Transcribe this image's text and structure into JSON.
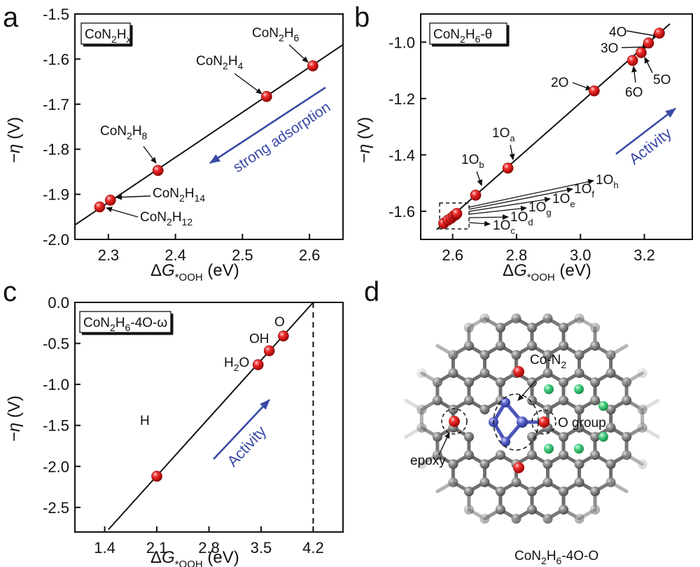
{
  "panels": {
    "a": {
      "letter": "a"
    },
    "b": {
      "letter": "b"
    },
    "c": {
      "letter": "c"
    },
    "d": {
      "letter": "d",
      "caption": "CoN2H6-4O-O",
      "labels": {
        "con2": "Co-N2",
        "ogroup": "O group",
        "epoxy": "epoxy"
      }
    }
  },
  "chart_data": [
    {
      "type": "scatter",
      "panel": "a",
      "title_box": "CoN2Hx",
      "xlabel": "ΔG*OOH (eV)",
      "ylabel": "−η (V)",
      "xlim": [
        2.25,
        2.65
      ],
      "ylim": [
        -2.0,
        -1.5
      ],
      "xticks": [
        2.3,
        2.4,
        2.5,
        2.6
      ],
      "yticks": [
        -2.0,
        -1.9,
        -1.8,
        -1.7,
        -1.6,
        -1.5
      ],
      "points": [
        {
          "label": "CoN2H12",
          "x": 2.287,
          "y": -1.928
        },
        {
          "label": "CoN2H14",
          "x": 2.303,
          "y": -1.913
        },
        {
          "label": "CoN2H8",
          "x": 2.374,
          "y": -1.847
        },
        {
          "label": "CoN2H4",
          "x": 2.536,
          "y": -1.683
        },
        {
          "label": "CoN2H6",
          "x": 2.605,
          "y": -1.615
        }
      ],
      "fit_line": {
        "x": [
          2.25,
          2.65
        ],
        "y": [
          -1.968,
          -1.568
        ]
      },
      "annotation": "strong adsorption"
    },
    {
      "type": "scatter",
      "panel": "b",
      "title_box": "CoN2H6-θ",
      "xlabel": "ΔG*OOH (eV)",
      "ylabel": "−η (V)",
      "xlim": [
        2.5,
        3.35
      ],
      "ylim": [
        -1.7,
        -0.9
      ],
      "xticks": [
        2.6,
        2.8,
        3.0,
        3.2
      ],
      "yticks": [
        -1.6,
        -1.4,
        -1.2,
        -1.0
      ],
      "points": [
        {
          "label": "1Oc",
          "x": 2.572,
          "y": -1.643
        },
        {
          "label": "1Od",
          "x": 2.585,
          "y": -1.632
        },
        {
          "label": "1Og",
          "x": 2.595,
          "y": -1.625
        },
        {
          "label": "1Oe",
          "x": 2.603,
          "y": -1.617
        },
        {
          "label": "1Of",
          "x": 2.61,
          "y": -1.612
        },
        {
          "label": "1Oh",
          "x": 2.613,
          "y": -1.608
        },
        {
          "label": "1Ob",
          "x": 2.672,
          "y": -1.543
        },
        {
          "label": "1Oa",
          "x": 2.773,
          "y": -1.447
        },
        {
          "label": "2O",
          "x": 3.043,
          "y": -1.173
        },
        {
          "label": "6O",
          "x": 3.163,
          "y": -1.065
        },
        {
          "label": "5O",
          "x": 3.19,
          "y": -1.037
        },
        {
          "label": "3O",
          "x": 3.213,
          "y": -1.003
        },
        {
          "label": "4O",
          "x": 3.247,
          "y": -0.968
        }
      ],
      "fit_line": {
        "x": [
          2.55,
          3.28
        ],
        "y": [
          -1.665,
          -0.935
        ]
      },
      "annotation": "Activity"
    },
    {
      "type": "scatter",
      "panel": "c",
      "title_box": "CoN2H6-4O-ω",
      "xlabel": "ΔG*OOH (eV)",
      "ylabel": "−η (V)",
      "xlim": [
        1.0,
        4.6
      ],
      "ylim": [
        -2.8,
        0.0
      ],
      "xticks": [
        1.4,
        2.1,
        2.8,
        3.5,
        4.2
      ],
      "yticks": [
        -2.5,
        -2.0,
        -1.5,
        -1.0,
        -0.5,
        0.0
      ],
      "points": [
        {
          "label": "H",
          "x": 2.1,
          "y": -2.12
        },
        {
          "label": "H2O",
          "x": 3.46,
          "y": -0.76
        },
        {
          "label": "OH",
          "x": 3.61,
          "y": -0.59
        },
        {
          "label": "O",
          "x": 3.8,
          "y": -0.41
        }
      ],
      "fit_line": {
        "x": [
          1.45,
          4.2
        ],
        "y": [
          -2.77,
          0.0
        ]
      },
      "dashed_vertical_x": 4.2,
      "annotation": "Activity"
    }
  ]
}
